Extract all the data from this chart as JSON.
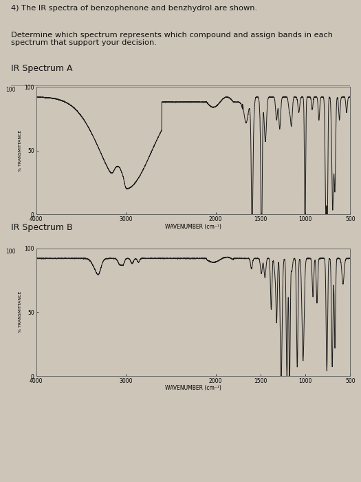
{
  "title_text": "4) The IR spectra of benzophenone and benzhydrol are shown.",
  "subtitle_text": "Determine which spectrum represents which compound and assign bands in each\nspectrum that support your decision.",
  "spectrum_a_title": "IR Spectrum A",
  "spectrum_b_title": "IR Spectrum B",
  "xlabel": "WAVENUMBER (cm⁻¹)",
  "ylabel": "% TRANSMITTANCE",
  "background_color": "#cdc5b8",
  "paper_color": "#cdc5b8",
  "line_color": "#1a1a1a",
  "text_color": "#111111",
  "ylim": [
    0,
    100
  ],
  "xlim_left": 4000,
  "xlim_right": 500,
  "x_ticks": [
    4000,
    3000,
    2000,
    1500,
    1000,
    500
  ],
  "y_ticks": [
    0,
    50,
    100
  ],
  "specA_baseline": 92,
  "specB_baseline": 93
}
